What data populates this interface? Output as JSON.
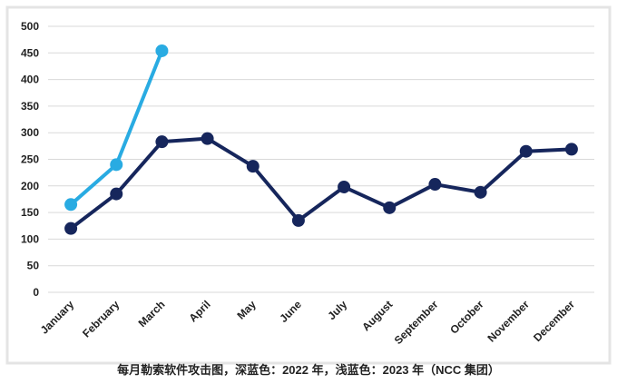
{
  "chart_data": {
    "type": "line",
    "title": "每月勒索软件攻击图，深蓝色：2022 年，浅蓝色：2023 年（NCC 集团）",
    "categories": [
      "January",
      "February",
      "March",
      "April",
      "May",
      "June",
      "July",
      "August",
      "September",
      "October",
      "November",
      "December"
    ],
    "series": [
      {
        "color": "#16265c",
        "values": [
          120,
          185,
          283,
          289,
          237,
          135,
          198,
          159,
          203,
          188,
          265,
          269
        ]
      },
      {
        "color": "#29abe2",
        "values": [
          165,
          240,
          454,
          null,
          null,
          null,
          null,
          null,
          null,
          null,
          null,
          null
        ]
      }
    ],
    "ylim": [
      0,
      500
    ],
    "yticks": [
      0,
      50,
      100,
      150,
      200,
      250,
      300,
      350,
      400,
      450,
      500
    ],
    "grid": true
  }
}
